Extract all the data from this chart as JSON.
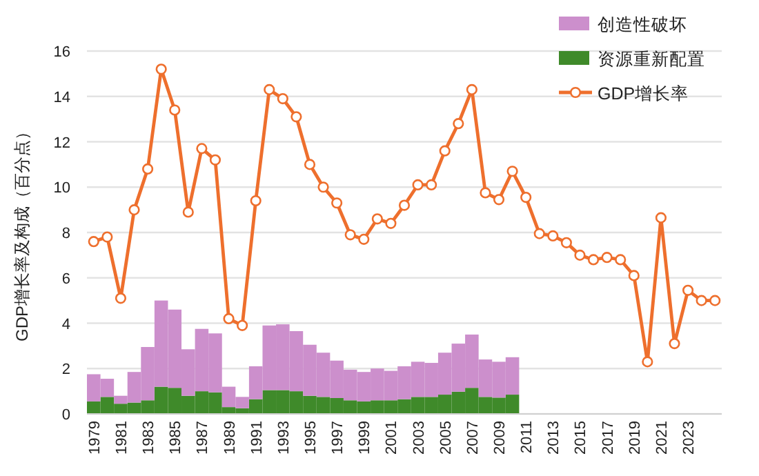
{
  "chart_data": {
    "type": "bar",
    "stacked": true,
    "ylabel": "GDP增长率及构成（百分点）",
    "categories": [
      "1979",
      null,
      "1981",
      null,
      "1983",
      null,
      "1985",
      null,
      "1987",
      null,
      "1989",
      null,
      "1991",
      null,
      "1993",
      null,
      "1995",
      null,
      "1997",
      null,
      "1999",
      null,
      "2001",
      null,
      "2003",
      null,
      "2005",
      null,
      "2007",
      null,
      "2009",
      null,
      "2011",
      null,
      "2013",
      null,
      "2015",
      null,
      "2017",
      null,
      "2019",
      null,
      "2021",
      null,
      "2023",
      null,
      null
    ],
    "series": [
      {
        "name": "资源重新配置",
        "color": "#3f8a2a",
        "values": [
          0.55,
          0.75,
          0.45,
          0.5,
          0.6,
          1.2,
          1.15,
          0.8,
          1.0,
          0.95,
          0.3,
          0.25,
          0.65,
          1.05,
          1.05,
          1.0,
          0.8,
          0.75,
          0.7,
          0.6,
          0.55,
          0.6,
          0.6,
          0.65,
          0.75,
          0.75,
          0.85,
          0.98,
          1.15,
          0.75,
          0.72,
          0.85,
          null,
          null,
          null,
          null,
          null,
          null,
          null,
          null,
          null,
          null,
          null,
          null,
          null,
          null,
          null
        ]
      },
      {
        "name": "创造性破坏",
        "color": "#cc8fcc",
        "values": [
          1.2,
          0.8,
          0.35,
          1.35,
          2.35,
          3.8,
          3.45,
          2.05,
          2.75,
          2.6,
          0.9,
          0.5,
          1.45,
          2.85,
          2.9,
          2.65,
          2.25,
          1.95,
          1.65,
          1.35,
          1.3,
          1.4,
          1.3,
          1.45,
          1.55,
          1.5,
          1.85,
          2.12,
          2.35,
          1.65,
          1.58,
          1.65,
          null,
          null,
          null,
          null,
          null,
          null,
          null,
          null,
          null,
          null,
          null,
          null,
          null,
          null,
          null
        ]
      },
      {
        "name": "GDP增长率",
        "color": "#ee6f2d",
        "type": "line",
        "marker": "circle",
        "values": [
          7.6,
          7.8,
          5.1,
          9.0,
          10.8,
          15.2,
          13.4,
          8.9,
          11.7,
          11.2,
          4.2,
          3.9,
          9.4,
          14.3,
          13.9,
          13.1,
          11.0,
          10.0,
          9.3,
          7.9,
          7.7,
          8.6,
          8.4,
          9.2,
          10.1,
          10.1,
          11.6,
          12.8,
          14.3,
          9.75,
          9.45,
          10.7,
          9.55,
          7.95,
          7.85,
          7.55,
          7.0,
          6.8,
          6.9,
          6.8,
          6.1,
          2.3,
          8.65,
          3.1,
          5.45,
          5.0,
          5.0
        ]
      }
    ],
    "ylim": [
      0,
      16
    ],
    "yticks": [
      0,
      2,
      4,
      6,
      8,
      10,
      12,
      14,
      16
    ],
    "grid": "y",
    "legend": "top right"
  }
}
